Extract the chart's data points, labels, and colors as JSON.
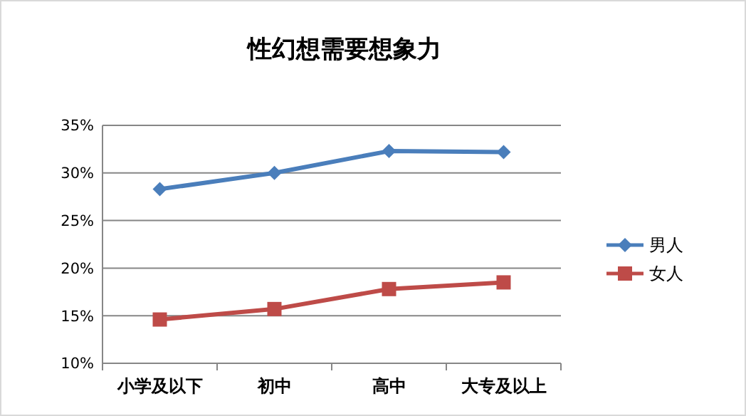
{
  "chart_data": {
    "type": "line",
    "title": "性幻想需要想象力",
    "categories": [
      "小学及以下",
      "初中",
      "高中",
      "大专及以上"
    ],
    "series": [
      {
        "name": "男人",
        "color": "#4a7ebb",
        "marker": "diamond",
        "values": [
          28.3,
          30.0,
          32.3,
          32.2
        ]
      },
      {
        "name": "女人",
        "color": "#be4b48",
        "marker": "square",
        "values": [
          14.6,
          15.7,
          17.8,
          18.5
        ]
      }
    ],
    "ylim": [
      10,
      35
    ],
    "yticks": [
      {
        "value": 10,
        "label": "10%"
      },
      {
        "value": 15,
        "label": "15%"
      },
      {
        "value": 20,
        "label": "20%"
      },
      {
        "value": 25,
        "label": "25%"
      },
      {
        "value": 30,
        "label": "30%"
      },
      {
        "value": 35,
        "label": "35%"
      }
    ],
    "grid": "y",
    "legend": "right"
  }
}
